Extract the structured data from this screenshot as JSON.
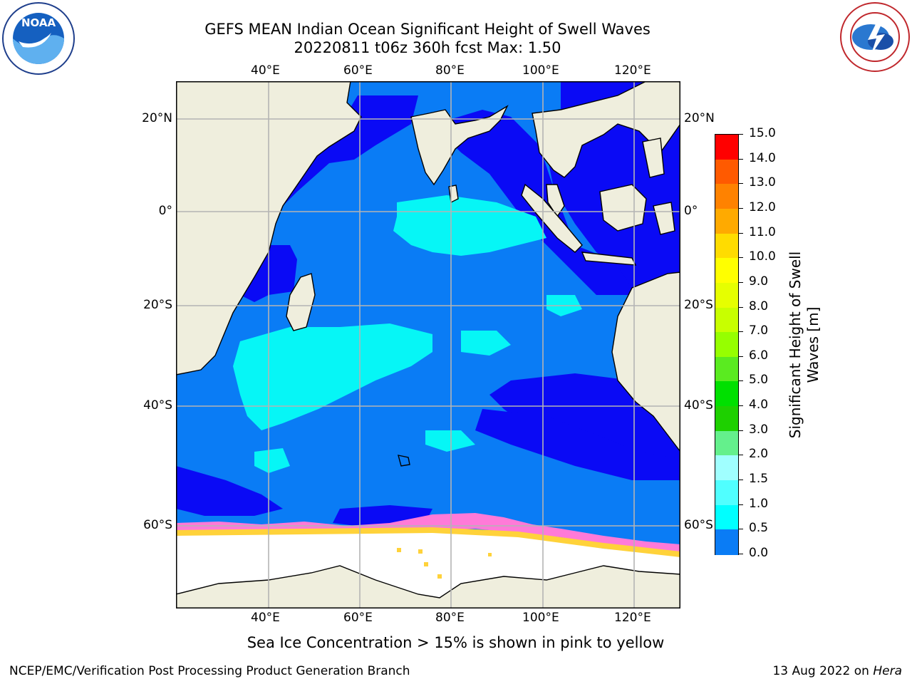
{
  "header": {
    "title_line1": "GEFS MEAN Indian Ocean Significant Height of Swell Waves",
    "title_line2": "20220811 t06z 360h fcst   Max: 1.50"
  },
  "logos": {
    "left": {
      "name": "noaa-logo",
      "text": "NOAA",
      "ring_text": "NATIONAL OCEANIC AND ATMOSPHERIC ADMINISTRATION · U.S. DEPARTMENT OF COMMERCE"
    },
    "right": {
      "name": "nws-logo",
      "ring_text": "NATIONAL WEATHER SERVICE"
    }
  },
  "map": {
    "lon_labels": [
      "40°E",
      "60°E",
      "80°E",
      "100°E",
      "120°E"
    ],
    "lat_labels": [
      "20°N",
      "0°",
      "20°S",
      "40°S",
      "60°S"
    ],
    "colors": {
      "land": "#efeedd",
      "ocean_low": "#0a0af5",
      "ocean_mid": "#0a7cf5",
      "ocean_high": "#06f6f6",
      "ice": "#ffffff",
      "ice_edge_pink": "#ff7ad8",
      "ice_edge_yellow": "#ffd23a",
      "grid": "#b4b4b4"
    }
  },
  "colorbar": {
    "label_line1": "Significant Height of Swell",
    "label_line2": "Waves [m]",
    "ticks": [
      "15.0",
      "14.0",
      "13.0",
      "12.0",
      "11.0",
      "10.0",
      "9.0",
      "8.0",
      "7.0",
      "6.0",
      "5.0",
      "4.0",
      "3.0",
      "2.0",
      "1.5",
      "1.0",
      "0.5",
      "0.0"
    ],
    "segments": [
      "#ff0000",
      "#ff2800",
      "#ff5a00",
      "#ff8200",
      "#ffaa00",
      "#ffdc00",
      "#ffff00",
      "#e6ff00",
      "#c8ff00",
      "#96ff00",
      "#5aeb20",
      "#00e000",
      "#1ed000",
      "#64f08c",
      "#a0ffff",
      "#50ffff",
      "#00ffff",
      "#0a7cf5",
      "#0000ff"
    ]
  },
  "notes": {
    "sea_ice": "Sea Ice Concentration > 15% is shown in pink to yellow"
  },
  "footer": {
    "left": "NCEP/EMC/Verification Post Processing Product Generation Branch",
    "right_prefix": "13 Aug 2022 on ",
    "right_host": "Hera"
  }
}
